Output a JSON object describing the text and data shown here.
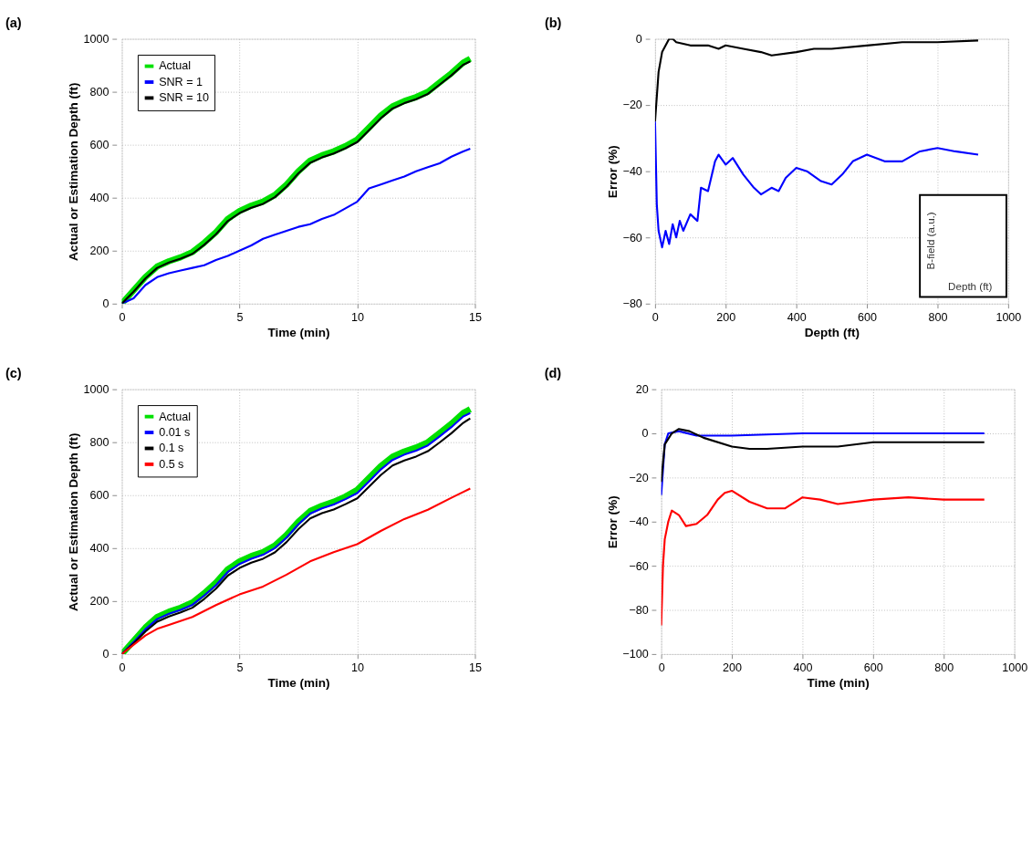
{
  "chart_data": [
    {
      "type": "line",
      "title": "(a)",
      "xlabel": "Time (min)",
      "ylabel": "Actual or Estimation Depth (ft)",
      "xlim": [
        0,
        15
      ],
      "xticks": [
        0,
        5,
        10,
        15
      ],
      "ylim": [
        0,
        1000
      ],
      "yticks": [
        0,
        200,
        400,
        600,
        800,
        1000
      ],
      "grid": true,
      "legend": "top left",
      "series": [
        {
          "name": "Actual",
          "color": "#00e000",
          "x": [
            0,
            0.5,
            1,
            1.5,
            2,
            2.5,
            3,
            3.5,
            4,
            4.5,
            5,
            5.5,
            6,
            6.5,
            7,
            7.5,
            8,
            8.5,
            9,
            9.5,
            10,
            10.5,
            11,
            11.5,
            12,
            12.5,
            13,
            13.5,
            14,
            14.5,
            14.8
          ],
          "values": [
            0,
            50,
            100,
            140,
            160,
            175,
            195,
            230,
            270,
            320,
            350,
            370,
            385,
            410,
            450,
            500,
            540,
            560,
            575,
            595,
            620,
            665,
            710,
            745,
            765,
            780,
            800,
            835,
            870,
            910,
            925
          ]
        },
        {
          "name": "SNR = 1",
          "color": "#0000ff",
          "x": [
            0,
            0.5,
            1,
            1.5,
            2,
            2.5,
            3,
            3.5,
            4,
            4.5,
            5,
            5.5,
            6,
            6.5,
            7,
            7.5,
            8,
            8.5,
            9,
            9.5,
            10,
            10.5,
            11,
            11.5,
            12,
            12.5,
            13,
            13.5,
            14,
            14.5,
            14.8
          ],
          "values": [
            0,
            20,
            70,
            100,
            115,
            125,
            135,
            145,
            165,
            180,
            200,
            220,
            245,
            260,
            275,
            290,
            300,
            320,
            335,
            360,
            385,
            435,
            450,
            465,
            480,
            500,
            515,
            530,
            555,
            575,
            585
          ]
        },
        {
          "name": "SNR = 10",
          "color": "#000000",
          "x": [
            0,
            0.5,
            1,
            1.5,
            2,
            2.5,
            3,
            3.5,
            4,
            4.5,
            5,
            5.5,
            6,
            6.5,
            7,
            7.5,
            8,
            8.5,
            9,
            9.5,
            10,
            10.5,
            11,
            11.5,
            12,
            12.5,
            13,
            13.5,
            14,
            14.5,
            14.8
          ],
          "values": [
            0,
            45,
            95,
            135,
            155,
            170,
            188,
            222,
            262,
            312,
            342,
            362,
            377,
            402,
            442,
            492,
            532,
            552,
            567,
            587,
            610,
            655,
            700,
            737,
            757,
            772,
            792,
            827,
            862,
            902,
            915
          ]
        }
      ]
    },
    {
      "type": "line",
      "title": "(b)",
      "xlabel": "Depth (ft)",
      "ylabel": "Error (%)",
      "xlim": [
        0,
        1000
      ],
      "xticks": [
        0,
        200,
        400,
        600,
        800,
        1000
      ],
      "ylim": [
        -80,
        0
      ],
      "yticks": [
        -80,
        -60,
        -40,
        -20,
        0
      ],
      "grid": true,
      "annotations": [
        "B-field (a.u.)",
        "Depth (ft)"
      ],
      "series": [
        {
          "color": "#000000",
          "x": [
            0,
            10,
            20,
            40,
            50,
            60,
            100,
            150,
            180,
            200,
            250,
            300,
            330,
            400,
            450,
            500,
            600,
            700,
            800,
            915
          ],
          "values": [
            -25,
            -10,
            -4,
            0,
            0,
            -1,
            -2,
            -2,
            -3,
            -2,
            -3,
            -4,
            -5,
            -4,
            -3,
            -3,
            -2,
            -1,
            -1,
            -0.5
          ]
        },
        {
          "color": "#0000ff",
          "x": [
            0,
            5,
            10,
            20,
            30,
            40,
            50,
            60,
            70,
            80,
            100,
            120,
            130,
            150,
            170,
            180,
            200,
            220,
            250,
            280,
            300,
            330,
            350,
            370,
            400,
            430,
            470,
            500,
            530,
            560,
            600,
            650,
            700,
            750,
            800,
            850,
            915
          ],
          "values": [
            -25,
            -50,
            -58,
            -63,
            -58,
            -62,
            -56,
            -60,
            -55,
            -58,
            -53,
            -55,
            -45,
            -46,
            -37,
            -35,
            -38,
            -36,
            -41,
            -45,
            -47,
            -45,
            -46,
            -42,
            -39,
            -40,
            -43,
            -44,
            -41,
            -37,
            -35,
            -37,
            -37,
            -34,
            -33,
            -34,
            -35
          ]
        }
      ]
    },
    {
      "type": "line",
      "title": "(c)",
      "xlabel": "Time (min)",
      "ylabel": "Actual or Estimation Depth (ft)",
      "xlim": [
        0,
        15
      ],
      "xticks": [
        0,
        5,
        10,
        15
      ],
      "ylim": [
        0,
        1000
      ],
      "yticks": [
        0,
        200,
        400,
        600,
        800,
        1000
      ],
      "grid": true,
      "legend": "top left",
      "series": [
        {
          "name": "Actual",
          "color": "#00e000",
          "x": [
            0,
            0.5,
            1,
            1.5,
            2,
            2.5,
            3,
            3.5,
            4,
            4.5,
            5,
            5.5,
            6,
            6.5,
            7,
            7.5,
            8,
            8.5,
            9,
            9.5,
            10,
            10.5,
            11,
            11.5,
            12,
            12.5,
            13,
            13.5,
            14,
            14.5,
            14.8
          ],
          "values": [
            0,
            50,
            100,
            140,
            160,
            175,
            195,
            230,
            270,
            320,
            350,
            370,
            385,
            410,
            450,
            500,
            540,
            560,
            575,
            595,
            620,
            665,
            710,
            745,
            765,
            780,
            800,
            835,
            870,
            910,
            925
          ]
        },
        {
          "name": "0.01 s",
          "color": "#0000ff",
          "x": [
            0,
            0.5,
            1,
            1.5,
            2,
            2.5,
            3,
            3.5,
            4,
            4.5,
            5,
            5.5,
            6,
            6.5,
            7,
            7.5,
            8,
            8.5,
            9,
            9.5,
            10,
            10.5,
            11,
            11.5,
            12,
            12.5,
            13,
            13.5,
            14,
            14.5,
            14.8
          ],
          "values": [
            0,
            45,
            93,
            132,
            152,
            167,
            186,
            221,
            260,
            310,
            340,
            360,
            375,
            400,
            440,
            490,
            530,
            550,
            565,
            585,
            608,
            652,
            697,
            733,
            753,
            768,
            788,
            822,
            857,
            897,
            910
          ]
        },
        {
          "name": "0.1 s",
          "color": "#000000",
          "x": [
            0,
            0.5,
            1,
            1.5,
            2,
            2.5,
            3,
            3.5,
            4,
            4.5,
            5,
            5.5,
            6,
            6.5,
            7,
            7.5,
            8,
            8.5,
            9,
            9.5,
            10,
            10.5,
            11,
            11.5,
            12,
            12.5,
            13,
            13.5,
            14,
            14.5,
            14.8
          ],
          "values": [
            0,
            40,
            85,
            122,
            142,
            157,
            175,
            208,
            247,
            296,
            325,
            345,
            360,
            384,
            423,
            472,
            512,
            532,
            546,
            566,
            588,
            632,
            676,
            712,
            731,
            746,
            766,
            799,
            834,
            873,
            890
          ]
        },
        {
          "name": "0.5 s",
          "color": "#ff0000",
          "x": [
            0,
            1,
            1.5,
            2,
            3,
            4,
            5,
            6,
            7,
            8,
            9,
            10,
            11,
            12,
            13,
            14,
            14.8
          ],
          "values": [
            0,
            70,
            95,
            110,
            140,
            185,
            225,
            255,
            300,
            350,
            385,
            415,
            465,
            510,
            545,
            590,
            625
          ]
        }
      ]
    },
    {
      "type": "line",
      "title": "(d)",
      "xlabel": "Time (min)",
      "ylabel": "Error (%)",
      "xlim": [
        0,
        1000
      ],
      "xticks": [
        0,
        200,
        400,
        600,
        800,
        1000
      ],
      "ylim": [
        -100,
        20
      ],
      "yticks": [
        -100,
        -80,
        -60,
        -40,
        -20,
        0,
        20
      ],
      "grid": true,
      "series": [
        {
          "color": "#0000ff",
          "x": [
            0,
            10,
            20,
            50,
            100,
            200,
            400,
            500,
            600,
            915
          ],
          "values": [
            -28,
            -5,
            0,
            1,
            -1,
            -1,
            0,
            0,
            0,
            0
          ]
        },
        {
          "color": "#000000",
          "x": [
            0,
            10,
            30,
            50,
            80,
            120,
            200,
            250,
            300,
            400,
            500,
            600,
            700,
            915
          ],
          "values": [
            -22,
            -5,
            0,
            2,
            1,
            -2,
            -6,
            -7,
            -7,
            -6,
            -6,
            -4,
            -4,
            -4
          ]
        },
        {
          "color": "#ff0000",
          "x": [
            0,
            5,
            10,
            20,
            30,
            50,
            70,
            100,
            130,
            160,
            180,
            200,
            250,
            300,
            350,
            400,
            450,
            500,
            600,
            700,
            800,
            915
          ],
          "values": [
            -87,
            -60,
            -48,
            -40,
            -35,
            -37,
            -42,
            -41,
            -37,
            -30,
            -27,
            -26,
            -31,
            -34,
            -34,
            -29,
            -30,
            -32,
            -30,
            -29,
            -30,
            -30
          ]
        }
      ]
    }
  ]
}
